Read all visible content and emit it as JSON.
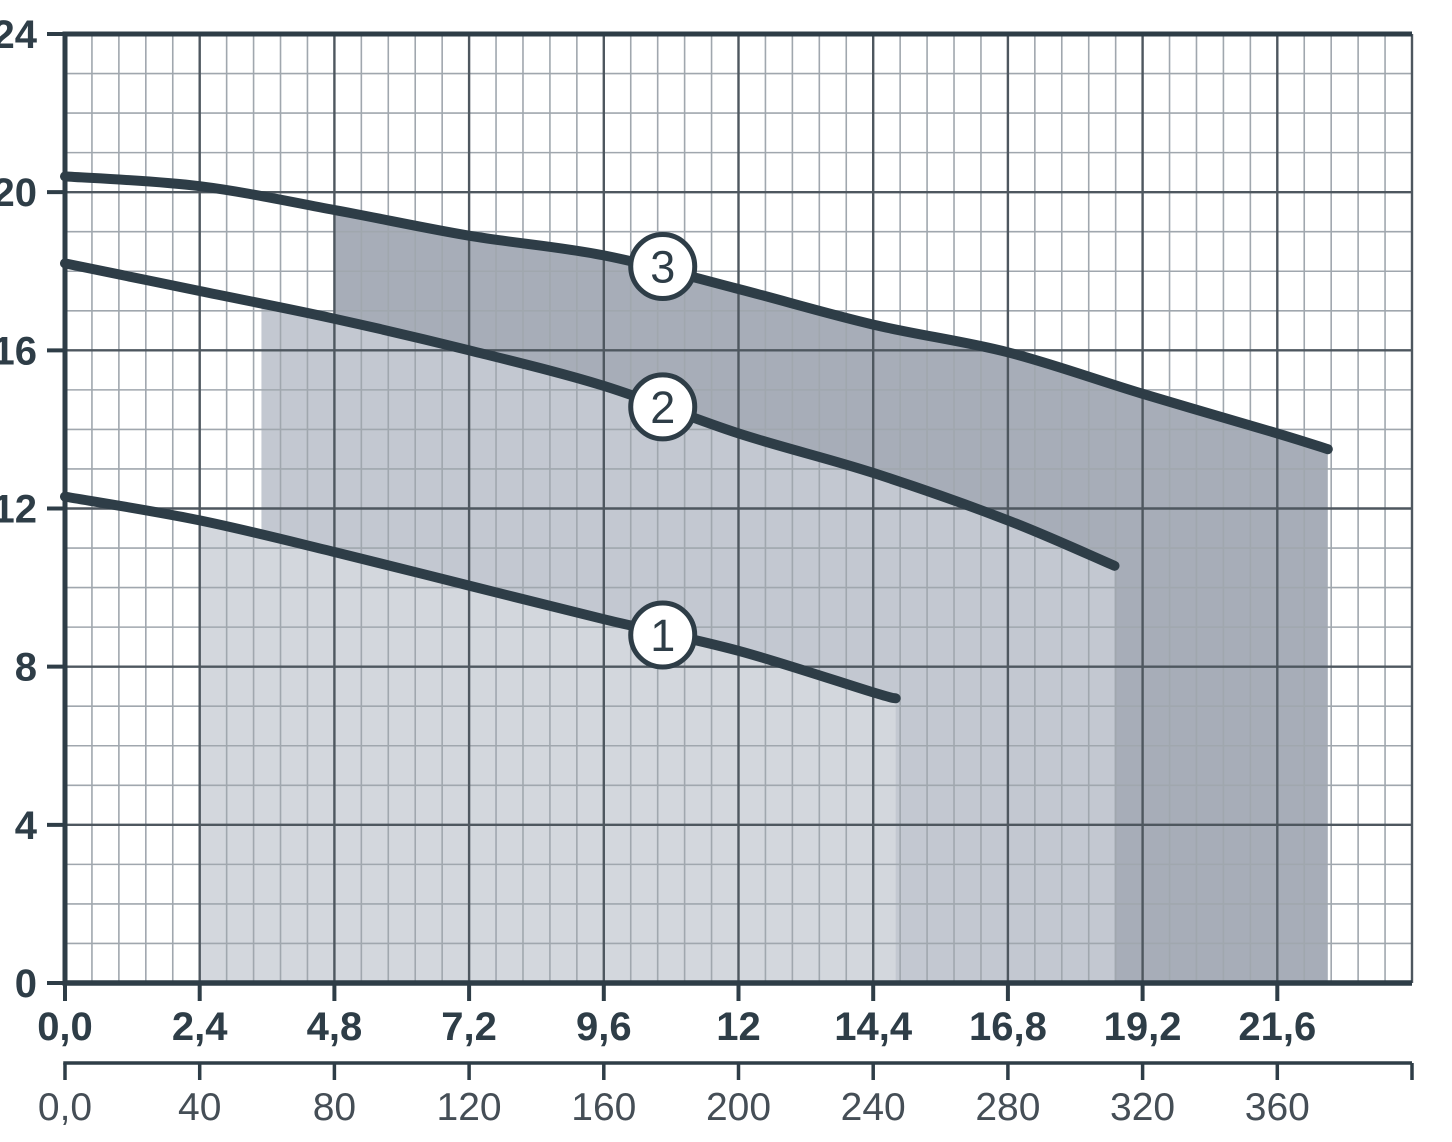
{
  "chart_data": {
    "type": "line",
    "title": "",
    "description": "Performance curves chart with three numbered curves and shaded duty ranges",
    "legend": "none",
    "grid": "on",
    "colors": {
      "background": "#ffffff",
      "curve": "#2e3d47",
      "axis": "#2e3d47",
      "grid_major": "#4e575f",
      "grid_minor": "#a0a7ae",
      "label_primary": "#2e3d47",
      "label_secondary": "#454e56",
      "circle_fill": "#ffffff",
      "band_1": "#d3d7dd",
      "band_2": "#c3c8d1",
      "band_3": "#a7adb8"
    },
    "y_axis": {
      "min": 0,
      "max": 24,
      "major_step": 4,
      "minor_step": 1,
      "tick_values": [
        0,
        4,
        8,
        12,
        16,
        20,
        24
      ],
      "tick_labels": [
        "0",
        "4",
        "8",
        "12",
        "16",
        "20",
        "24"
      ]
    },
    "x_axis": {
      "min": 0,
      "max": 24,
      "major_step": 2.4,
      "minor_step": 0.48,
      "tick_values": [
        0,
        2.4,
        4.8,
        7.2,
        9.6,
        12,
        14.4,
        16.8,
        19.2,
        21.6
      ],
      "tick_labels": [
        "0,0",
        "2,4",
        "4,8",
        "7,2",
        "9,6",
        "12",
        "14,4",
        "16,8",
        "19,2",
        "21,6"
      ]
    },
    "x2_axis": {
      "min": 0,
      "max": 400,
      "tick_values": [
        0,
        40,
        80,
        120,
        160,
        200,
        240,
        280,
        320,
        360
      ],
      "tick_labels": [
        "0,0",
        "40",
        "80",
        "120",
        "160",
        "200",
        "240",
        "280",
        "320",
        "360"
      ],
      "end_cap_value": 400
    },
    "series": [
      {
        "name": "3",
        "points": [
          [
            0,
            20.4
          ],
          [
            2.4,
            20.15
          ],
          [
            4.8,
            19.55
          ],
          [
            7.2,
            18.9
          ],
          [
            9.6,
            18.4
          ],
          [
            12,
            17.55
          ],
          [
            14.4,
            16.65
          ],
          [
            16.8,
            15.95
          ],
          [
            19.2,
            14.9
          ],
          [
            21.6,
            13.9
          ],
          [
            22.5,
            13.5
          ]
        ],
        "band": {
          "x_start": 4.8,
          "x_end": 22.5,
          "fill": "#a7adb8"
        },
        "label": {
          "text": "3",
          "x": 10.65,
          "y": 18.12
        }
      },
      {
        "name": "2",
        "points": [
          [
            0,
            18.2
          ],
          [
            2.4,
            17.5
          ],
          [
            4.8,
            16.8
          ],
          [
            7.2,
            16
          ],
          [
            9.6,
            15.1
          ],
          [
            12,
            13.9
          ],
          [
            14.4,
            12.9
          ],
          [
            16.8,
            11.7
          ],
          [
            18.7,
            10.55
          ]
        ],
        "band": {
          "x_start": 3.5,
          "x_end": 18.7,
          "fill": "#c3c8d1"
        },
        "label": {
          "text": "2",
          "x": 10.65,
          "y": 14.57
        }
      },
      {
        "name": "1",
        "points": [
          [
            0,
            12.3
          ],
          [
            2.4,
            11.7
          ],
          [
            4.8,
            10.9
          ],
          [
            7.2,
            10.05
          ],
          [
            9.6,
            9.2
          ],
          [
            12,
            8.4
          ],
          [
            14.4,
            7.35
          ],
          [
            14.8,
            7.2
          ]
        ],
        "band": {
          "x_start": 2.4,
          "x_end": 14.8,
          "fill": "#d3d7dd"
        },
        "label": {
          "text": "1",
          "x": 10.65,
          "y": 8.8
        }
      }
    ]
  }
}
